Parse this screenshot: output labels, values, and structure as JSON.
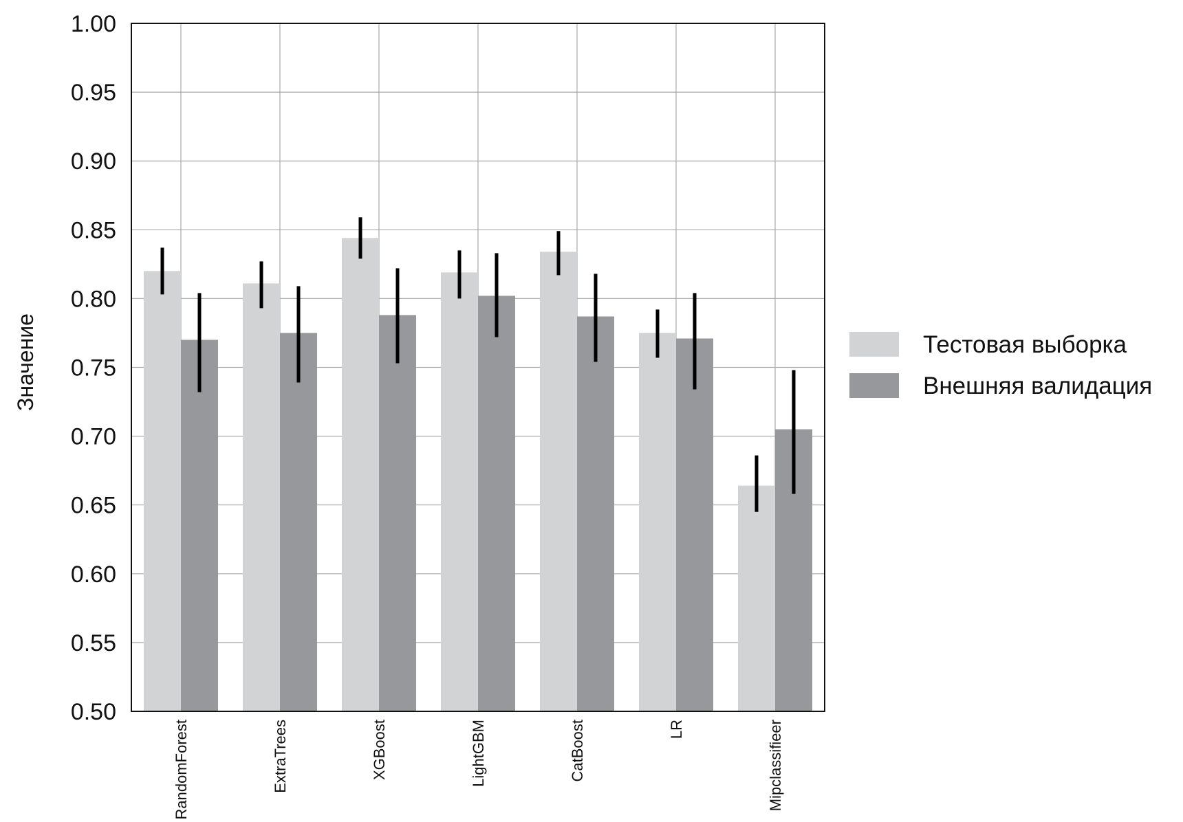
{
  "chart_data": {
    "type": "bar",
    "title": "",
    "xlabel": "",
    "ylabel": "Значение",
    "ylim": [
      0.5,
      1.0
    ],
    "yticks": [
      "0.50",
      "0.55",
      "0.60",
      "0.65",
      "0.70",
      "0.75",
      "0.80",
      "0.85",
      "0.90",
      "0.95",
      "1.00"
    ],
    "grid": true,
    "legend_position": "right",
    "categories": [
      "RandomForest",
      "ExtraTrees",
      "XGBoost",
      "LightGBM",
      "CatBoost",
      "LR",
      "Mipclassifieer"
    ],
    "series": [
      {
        "name": "Тестовая выборка",
        "color": "#d2d3d5",
        "values": [
          0.82,
          0.811,
          0.844,
          0.819,
          0.834,
          0.775,
          0.664
        ],
        "err_low": [
          0.803,
          0.793,
          0.829,
          0.8,
          0.817,
          0.757,
          0.645
        ],
        "err_high": [
          0.837,
          0.827,
          0.859,
          0.835,
          0.849,
          0.792,
          0.686
        ]
      },
      {
        "name": "Внешняя валидация",
        "color": "#97989b",
        "values": [
          0.77,
          0.775,
          0.788,
          0.802,
          0.787,
          0.771,
          0.705
        ],
        "err_low": [
          0.732,
          0.739,
          0.753,
          0.772,
          0.754,
          0.734,
          0.658
        ],
        "err_high": [
          0.804,
          0.809,
          0.822,
          0.833,
          0.818,
          0.804,
          0.748
        ]
      }
    ]
  }
}
